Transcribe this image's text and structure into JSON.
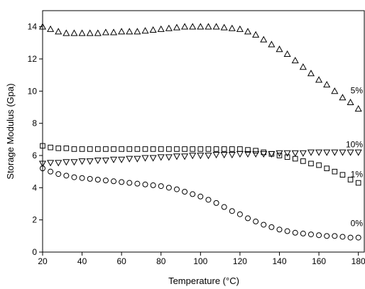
{
  "chart_data": {
    "type": "scatter",
    "x_label": "Temperature (°C)",
    "y_label": "Storage Modulus (Gpa)",
    "xlim": [
      20,
      183
    ],
    "ylim": [
      0,
      15
    ],
    "xticks": [
      20,
      40,
      60,
      80,
      100,
      120,
      140,
      160,
      180
    ],
    "yticks": [
      0,
      2,
      4,
      6,
      8,
      10,
      12,
      14
    ],
    "grid": false,
    "x": [
      20,
      24,
      28,
      32,
      36,
      40,
      44,
      48,
      52,
      56,
      60,
      64,
      68,
      72,
      76,
      80,
      84,
      88,
      92,
      96,
      100,
      104,
      108,
      112,
      116,
      120,
      124,
      128,
      132,
      136,
      140,
      144,
      148,
      152,
      156,
      160,
      164,
      168,
      172,
      176,
      180
    ],
    "series": [
      {
        "name": "5%",
        "marker": "triangle-up",
        "color": "#000000",
        "values": [
          14.0,
          13.85,
          13.7,
          13.6,
          13.6,
          13.6,
          13.6,
          13.6,
          13.65,
          13.65,
          13.7,
          13.7,
          13.7,
          13.75,
          13.8,
          13.85,
          13.9,
          13.95,
          14.0,
          14.0,
          14.0,
          14.0,
          14.0,
          13.95,
          13.9,
          13.85,
          13.7,
          13.5,
          13.2,
          12.9,
          12.6,
          12.3,
          11.9,
          11.5,
          11.1,
          10.7,
          10.4,
          10.0,
          9.6,
          9.3,
          8.9
        ]
      },
      {
        "name": "10%",
        "marker": "triangle-down",
        "color": "#000000",
        "values": [
          5.5,
          5.55,
          5.55,
          5.6,
          5.6,
          5.65,
          5.65,
          5.7,
          5.7,
          5.75,
          5.75,
          5.8,
          5.8,
          5.85,
          5.85,
          5.9,
          5.9,
          5.95,
          5.95,
          6.0,
          6.0,
          6.0,
          6.05,
          6.05,
          6.05,
          6.1,
          6.1,
          6.1,
          6.1,
          6.1,
          6.15,
          6.15,
          6.15,
          6.15,
          6.2,
          6.2,
          6.2,
          6.2,
          6.2,
          6.2,
          6.2
        ]
      },
      {
        "name": "1%",
        "marker": "square",
        "color": "#000000",
        "values": [
          6.6,
          6.5,
          6.45,
          6.45,
          6.4,
          6.4,
          6.4,
          6.4,
          6.4,
          6.4,
          6.4,
          6.4,
          6.4,
          6.4,
          6.4,
          6.4,
          6.4,
          6.4,
          6.4,
          6.4,
          6.4,
          6.4,
          6.4,
          6.4,
          6.4,
          6.4,
          6.35,
          6.3,
          6.2,
          6.1,
          6.0,
          5.9,
          5.8,
          5.65,
          5.5,
          5.4,
          5.2,
          5.0,
          4.8,
          4.5,
          4.3
        ]
      },
      {
        "name": "0%",
        "marker": "circle",
        "color": "#000000",
        "values": [
          5.2,
          5.0,
          4.85,
          4.75,
          4.65,
          4.6,
          4.55,
          4.5,
          4.45,
          4.4,
          4.35,
          4.3,
          4.25,
          4.2,
          4.15,
          4.1,
          4.0,
          3.9,
          3.75,
          3.6,
          3.45,
          3.25,
          3.05,
          2.8,
          2.55,
          2.35,
          2.1,
          1.9,
          1.7,
          1.55,
          1.4,
          1.3,
          1.2,
          1.15,
          1.1,
          1.05,
          1.0,
          1.0,
          0.95,
          0.9,
          0.9
        ]
      }
    ]
  }
}
